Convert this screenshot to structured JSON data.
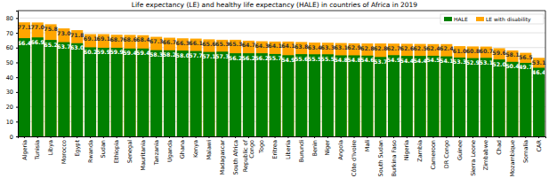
{
  "chart_data": {
    "type": "bar",
    "title": "Life expectancy (LE) and healthy life expectancy (HALE) in countries of Africa in 2019",
    "categories": [
      "Algeria",
      "Tunisia",
      "Libya",
      "Morocco",
      "Egypt",
      "Rwanda",
      "Sudan",
      "Ethiopia",
      "Senegal",
      "Mauritania",
      "Tanzania",
      "Uganda",
      "Ghana",
      "Kenya",
      "Malawi",
      "Madagascar",
      "South Africa",
      "Republic of Congo",
      "Togo",
      "Eritrea",
      "Liberia",
      "Burundi",
      "Benin",
      "Niger",
      "Angola",
      "Côte d'Ivoire",
      "Mali",
      "South Sudan",
      "Burkina Faso",
      "Nigeria",
      "Zambia",
      "Cameroon",
      "DR Congo",
      "Guinee",
      "Sierra Leone",
      "Zimbabwe",
      "Chad",
      "Mozambique",
      "Somalia",
      "CAR"
    ],
    "series": [
      {
        "name": "HALE",
        "color": "#008000",
        "values": [
          66.4,
          66.9,
          65.2,
          63.7,
          63.0,
          60.2,
          59.9,
          59.9,
          59.4,
          59.4,
          58.3,
          58.2,
          58.0,
          57.7,
          57.1,
          57.3,
          56.2,
          56.2,
          56.2,
          55.7,
          54.9,
          55.6,
          55.5,
          55.5,
          54.8,
          54.8,
          54.6,
          53.7,
          54.9,
          54.4,
          54.4,
          54.5,
          54.1,
          53.3,
          52.9,
          53.1,
          52.0,
          50.4,
          49.7,
          46.4
        ],
        "value_labels": [
          "66.4",
          "66.9",
          "65.2",
          "63.7",
          "63.0",
          "60.2",
          "59.9",
          "59.9",
          "59.4",
          "59.4",
          "58.3",
          "58.2",
          "58.0",
          "57.7",
          "57.1",
          "57.3",
          "56.2",
          "56.2",
          "56.2",
          "55.7",
          "54.9",
          "55.6",
          "55.5",
          "55.5",
          "54.8",
          "54.8",
          "54.6",
          "53.7",
          "54.9",
          "54.4",
          "54.4",
          "54.5",
          "54.1",
          "53.3",
          "52.9",
          "53.1",
          "52.0",
          "50.4",
          "49.7",
          "46.4"
        ]
      },
      {
        "name": "LE with disability",
        "color": "#ffa500",
        "values": [
          77.1,
          77.0,
          75.8,
          73.0,
          71.8,
          69.1,
          69.1,
          68.7,
          68.6,
          68.4,
          67.3,
          66.7,
          66.3,
          66.1,
          65.6,
          65.3,
          65.3,
          64.7,
          64.3,
          64.1,
          64.1,
          63.8,
          63.4,
          63.3,
          63.1,
          62.9,
          62.8,
          62.8,
          62.7,
          62.6,
          62.5,
          62.4,
          62.4,
          61.0,
          60.8,
          60.7,
          59.6,
          58.1,
          56.5,
          53.1
        ],
        "value_labels": [
          "77.1",
          "77.0",
          "75.8",
          "73.0",
          "71.8",
          "69.1",
          "69.1",
          "68.7",
          "68.6",
          "68.4",
          "67.3",
          "66.7",
          "66.3",
          "66.1",
          "65.6",
          "65.3",
          "65.3",
          "64.7",
          "64.3",
          "64.1",
          "64.1",
          "63.8",
          "63.4",
          "63.3",
          "63.1",
          "62.9",
          "62.8",
          "62.8",
          "62.7",
          "62.6",
          "62.5",
          "62.4",
          "62.4",
          "61.0",
          "60.8",
          "60.7",
          "59.6",
          "58.1",
          "56.5",
          "53.1"
        ]
      }
    ],
    "ylim": [
      0,
      85
    ],
    "yticks": [
      0,
      10,
      20,
      30,
      40,
      50,
      60,
      70,
      80
    ],
    "grid": true,
    "stacked": false,
    "data_labels": true,
    "legend": "upper right"
  }
}
